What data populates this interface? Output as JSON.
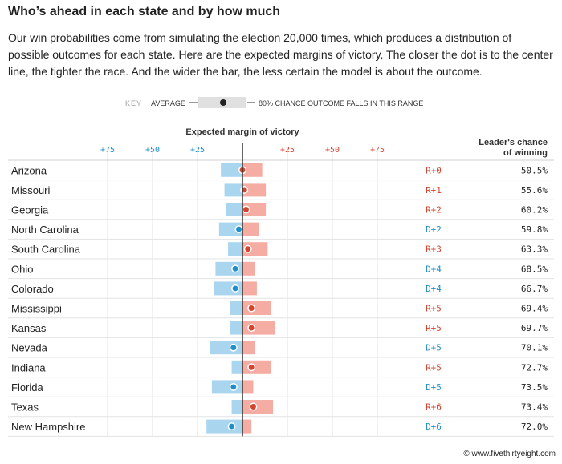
{
  "header": {
    "title": "Who’s ahead in each state and by how much",
    "subtitle": "Our win probabilities come from simulating the election 20,000 times, which produces a distribution of possible outcomes for each state. Here are the expected margins of victory. The closer the dot is to the center line, the tighter the race. And the wider the bar, the less certain the model is about the outcome."
  },
  "key": {
    "label": "KEY",
    "average_label": "AVERAGE",
    "range_label": "80% CHANCE OUTCOME FALLS IN THIS RANGE"
  },
  "credit": "© www.fivethirtyeight.com",
  "chart_data": {
    "type": "bar",
    "title": "Expected margin of victory",
    "column_header_line1": "Leader's chance",
    "column_header_line2": "of winning",
    "x_ticks_left": [
      "+75",
      "+50",
      "+25"
    ],
    "x_ticks_right": [
      "+25",
      "+50",
      "+75"
    ],
    "xlim": [
      -75,
      75
    ],
    "colors": {
      "dem": "#1f8fc9",
      "dem_bar": "#a9d6ee",
      "rep": "#d6432d",
      "rep_bar": "#f5aca3",
      "center": "#333333",
      "grid": "#e3e3e3"
    },
    "rows": [
      {
        "state": "Arizona",
        "margin_label": "R+0",
        "party": "R",
        "margin": 0,
        "low": -12,
        "high": 11,
        "chance": "50.5%"
      },
      {
        "state": "Missouri",
        "margin_label": "R+1",
        "party": "R",
        "margin": 1,
        "low": -10,
        "high": 13,
        "chance": "55.6%"
      },
      {
        "state": "Georgia",
        "margin_label": "R+2",
        "party": "R",
        "margin": 2,
        "low": -9,
        "high": 13,
        "chance": "60.2%"
      },
      {
        "state": "North Carolina",
        "margin_label": "D+2",
        "party": "D",
        "margin": -2,
        "low": -13,
        "high": 9,
        "chance": "59.8%"
      },
      {
        "state": "South Carolina",
        "margin_label": "R+3",
        "party": "R",
        "margin": 3,
        "low": -8,
        "high": 14,
        "chance": "63.3%"
      },
      {
        "state": "Ohio",
        "margin_label": "D+4",
        "party": "D",
        "margin": -4,
        "low": -15,
        "high": 7,
        "chance": "68.5%"
      },
      {
        "state": "Colorado",
        "margin_label": "D+4",
        "party": "D",
        "margin": -4,
        "low": -16,
        "high": 8,
        "chance": "66.7%"
      },
      {
        "state": "Mississippi",
        "margin_label": "R+5",
        "party": "R",
        "margin": 5,
        "low": -7,
        "high": 16,
        "chance": "69.4%"
      },
      {
        "state": "Kansas",
        "margin_label": "R+5",
        "party": "R",
        "margin": 5,
        "low": -7,
        "high": 18,
        "chance": "69.7%"
      },
      {
        "state": "Nevada",
        "margin_label": "D+5",
        "party": "D",
        "margin": -5,
        "low": -18,
        "high": 7,
        "chance": "70.1%"
      },
      {
        "state": "Indiana",
        "margin_label": "R+5",
        "party": "R",
        "margin": 5,
        "low": -6,
        "high": 16,
        "chance": "72.7%"
      },
      {
        "state": "Florida",
        "margin_label": "D+5",
        "party": "D",
        "margin": -5,
        "low": -17,
        "high": 6,
        "chance": "73.5%"
      },
      {
        "state": "Texas",
        "margin_label": "R+6",
        "party": "R",
        "margin": 6,
        "low": -6,
        "high": 17,
        "chance": "73.4%"
      },
      {
        "state": "New Hampshire",
        "margin_label": "D+6",
        "party": "D",
        "margin": -6,
        "low": -20,
        "high": 5,
        "chance": "72.0%"
      }
    ]
  }
}
